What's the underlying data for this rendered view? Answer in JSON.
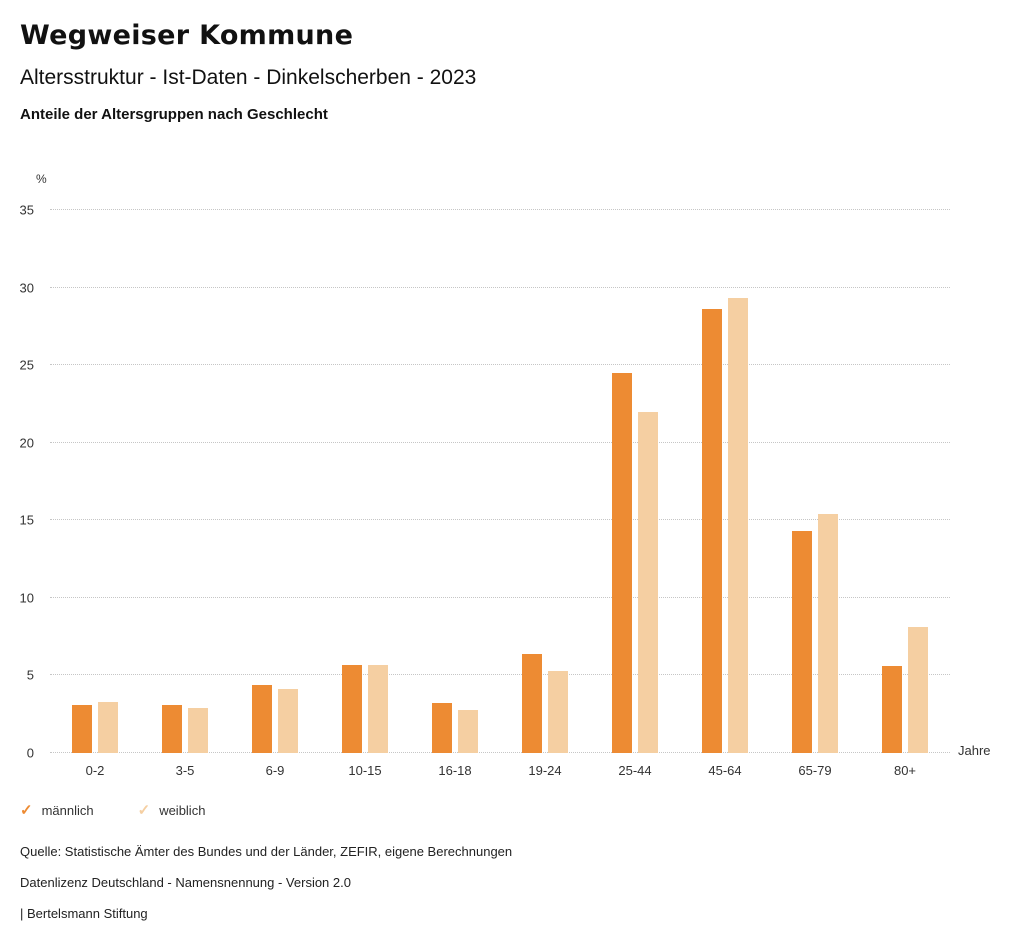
{
  "header": {
    "title": "Wegweiser Kommune",
    "subtitle": "Altersstruktur - Ist-Daten - Dinkelscherben - 2023",
    "chart_title": "Anteile der Altersgruppen nach Geschlecht"
  },
  "chart_data": {
    "type": "bar",
    "title": "Anteile der Altersgruppen nach Geschlecht",
    "categories": [
      "0-2",
      "3-5",
      "6-9",
      "10-15",
      "16-18",
      "19-24",
      "25-44",
      "45-64",
      "65-79",
      "80+"
    ],
    "series": [
      {
        "name": "männlich",
        "color": "#ED8B33",
        "values": [
          3.1,
          3.1,
          4.4,
          5.7,
          3.2,
          6.4,
          24.5,
          28.6,
          14.3,
          5.6
        ]
      },
      {
        "name": "weiblich",
        "color": "#F5CFA2",
        "values": [
          3.3,
          2.9,
          4.1,
          5.7,
          2.8,
          5.3,
          22.0,
          29.3,
          15.4,
          8.1
        ]
      }
    ],
    "ylabel": "%",
    "xlabel": "Jahre",
    "ylim": [
      0,
      35
    ],
    "yticks": [
      0,
      5,
      10,
      15,
      20,
      25,
      30,
      35
    ],
    "grid": "horizontal dotted",
    "legend_position": "bottom-left"
  },
  "legend": {
    "items": [
      {
        "label": "männlich",
        "check": "✓",
        "color": "#ED8B33"
      },
      {
        "label": "weiblich",
        "check": "✓",
        "color": "#F5CFA2"
      }
    ]
  },
  "footer": {
    "source": "Quelle: Statistische Ämter des Bundes und der Länder, ZEFIR, eigene Berechnungen",
    "license": "Datenlizenz Deutschland - Namensnennung - Version 2.0",
    "attribution": "| Bertelsmann Stiftung"
  }
}
